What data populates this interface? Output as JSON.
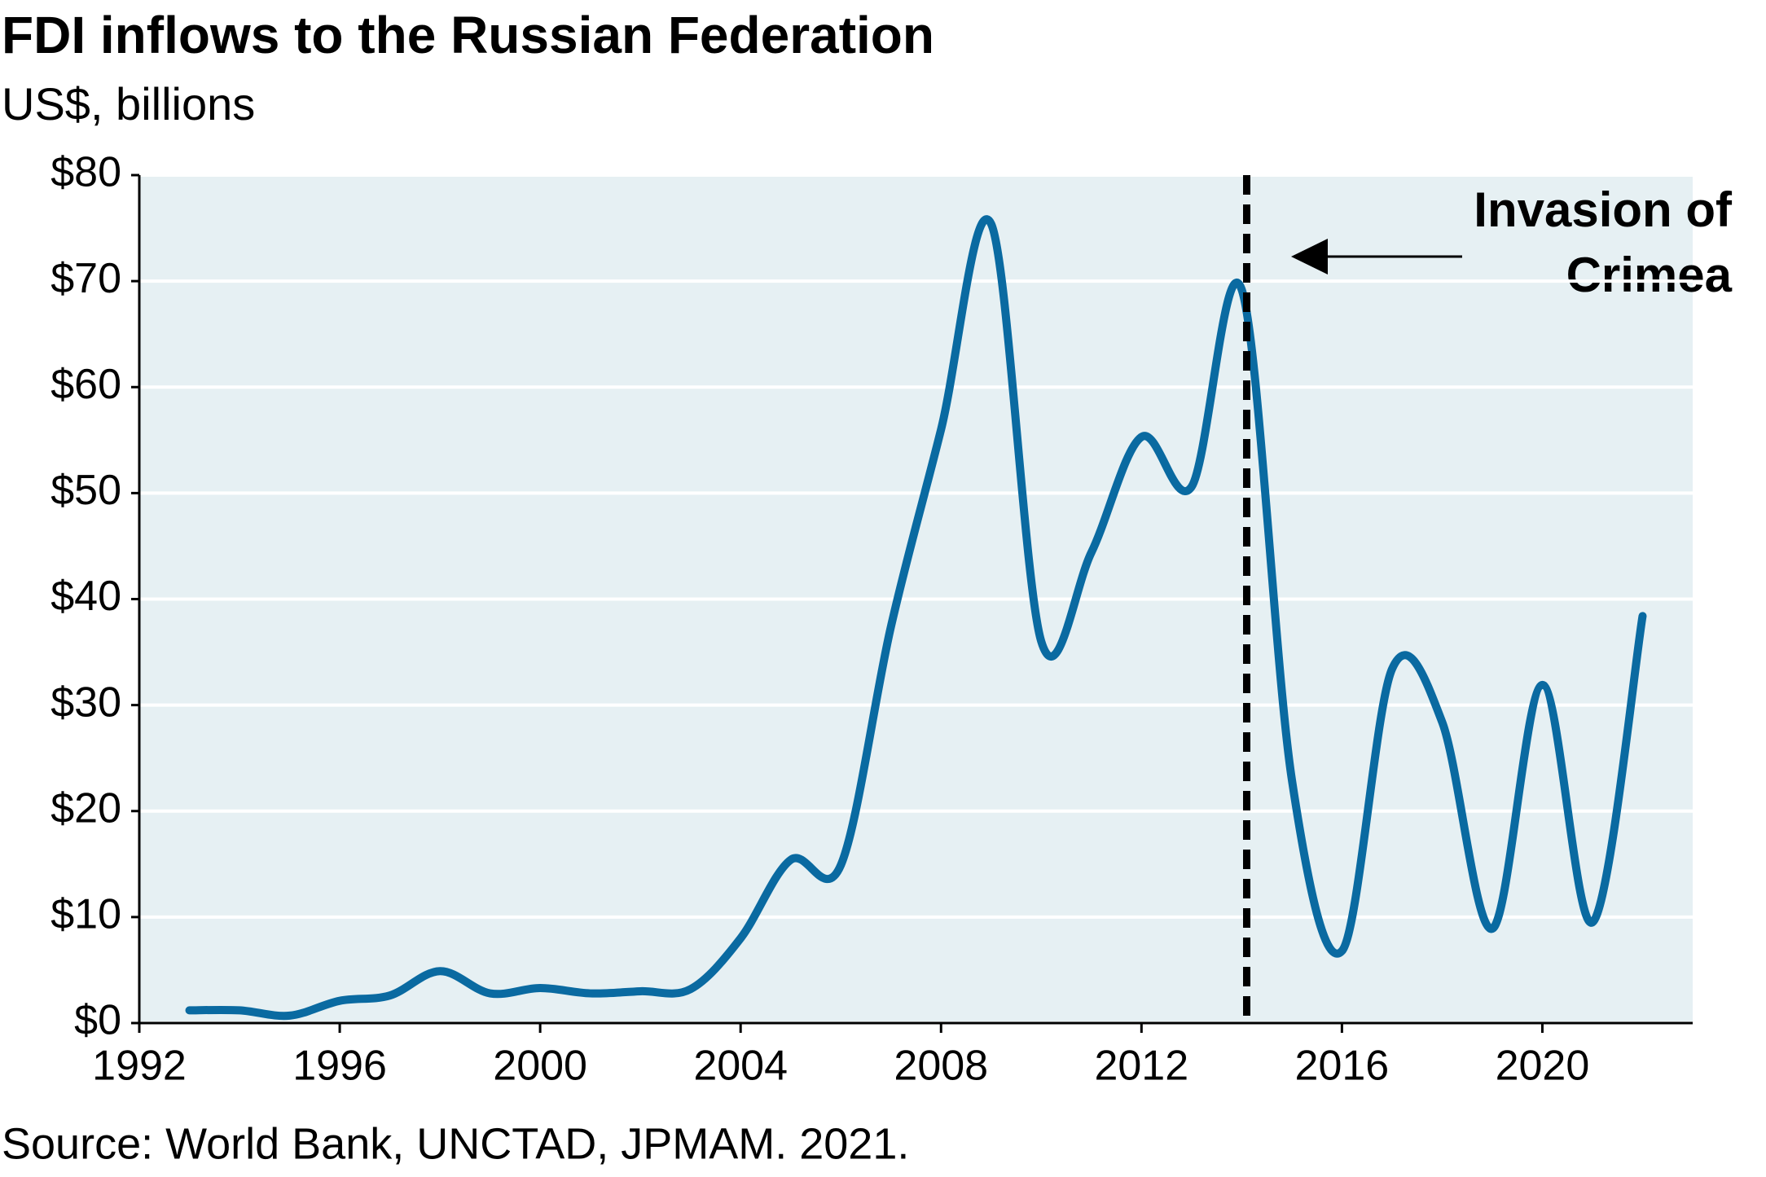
{
  "chart_data": {
    "type": "line",
    "title": "FDI inflows to the Russian Federation",
    "subtitle": "US$, billions",
    "source": "Source: World Bank, UNCTAD, JPMAM. 2021.",
    "x": [
      1993,
      1994,
      1995,
      1996,
      1997,
      1998,
      1999,
      2000,
      2001,
      2002,
      2003,
      2004,
      2005,
      2006,
      2007,
      2008,
      2009,
      2010,
      2011,
      2012,
      2013,
      2014,
      2015,
      2016,
      2017,
      2018,
      2019,
      2020,
      2021,
      2022
    ],
    "series": [
      {
        "color": "#0a6aa1",
        "values": [
          1.2,
          1.2,
          0.7,
          2.1,
          2.6,
          4.9,
          2.8,
          3.3,
          2.8,
          3.0,
          3.2,
          8.0,
          15.4,
          14.9,
          37.4,
          56.0,
          75.4,
          36.0,
          44.4,
          55.3,
          50.6,
          69.2,
          23.0,
          6.8,
          33.4,
          28.4,
          8.9,
          31.9,
          9.5,
          38.4
        ]
      }
    ],
    "xlim": [
      1992,
      2023
    ],
    "xticks": [
      1992,
      1996,
      2000,
      2004,
      2008,
      2012,
      2016,
      2020
    ],
    "ylim": [
      0,
      80
    ],
    "yticks": [
      {
        "value": 0,
        "label": "$0"
      },
      {
        "value": 10,
        "label": "$10"
      },
      {
        "value": 20,
        "label": "$20"
      },
      {
        "value": 30,
        "label": "$30"
      },
      {
        "value": 40,
        "label": "$40"
      },
      {
        "value": 50,
        "label": "$50"
      },
      {
        "value": 60,
        "label": "$60"
      },
      {
        "value": 70,
        "label": "$70"
      },
      {
        "value": 80,
        "label": "$80"
      }
    ],
    "grid": true,
    "annotation": {
      "lines": [
        "Invasion of",
        "Crimea"
      ],
      "x": 2014.1
    }
  }
}
